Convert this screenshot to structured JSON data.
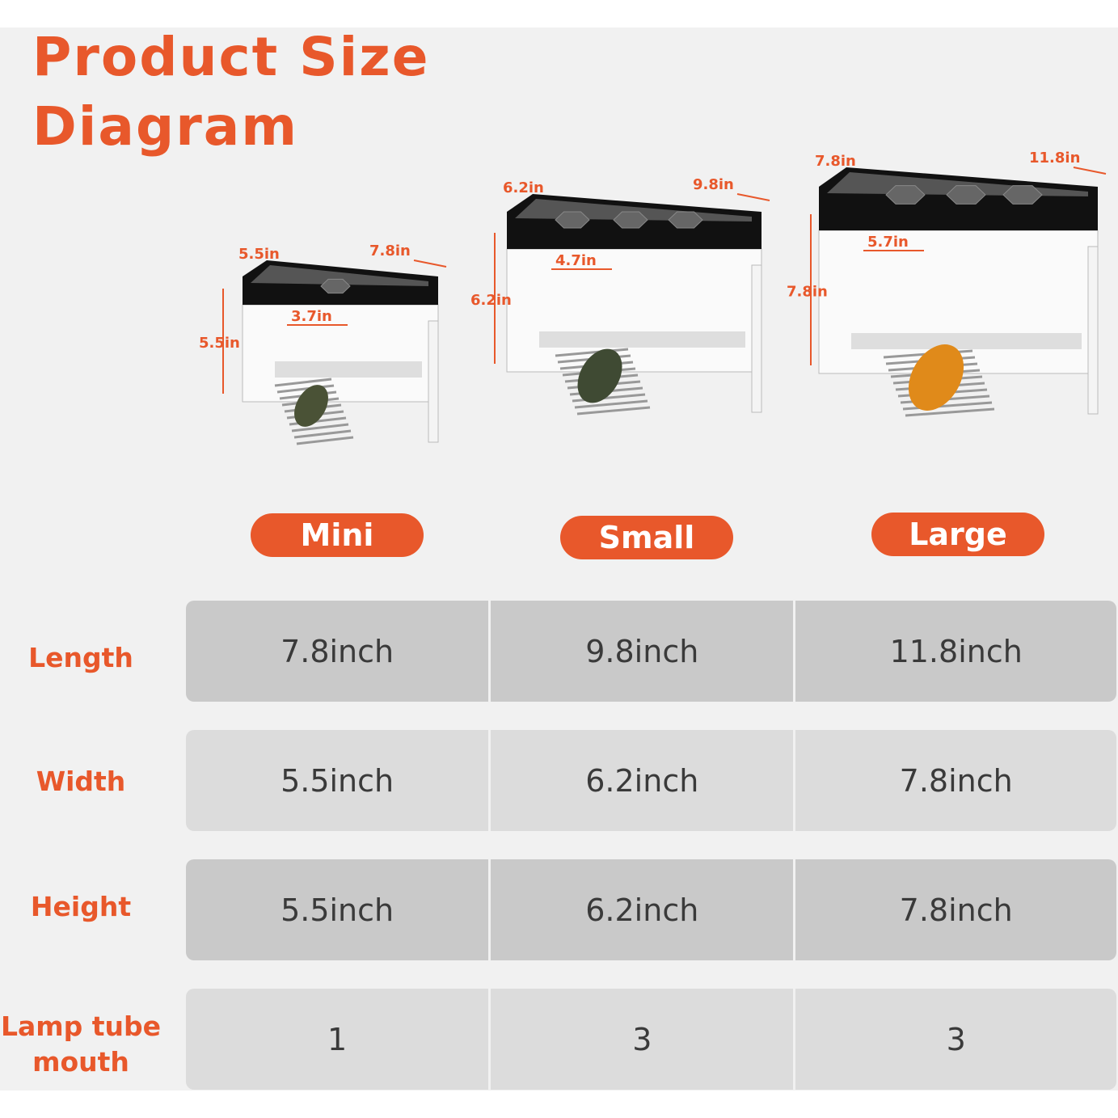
{
  "title": [
    "Product Size",
    "Diagram"
  ],
  "colors": {
    "accent": "#e8582b",
    "row_dark": "#c9c9c9",
    "row_light": "#dcdcdc"
  },
  "products": [
    {
      "name": "Mini",
      "dims": {
        "width": "5.5in",
        "length": "7.8in",
        "height": "5.5in",
        "opening": "3.7in"
      },
      "lamp_holes": 1
    },
    {
      "name": "Small",
      "dims": {
        "width": "6.2in",
        "length": "9.8in",
        "height": "6.2in",
        "opening": "4.7in"
      },
      "lamp_holes": 3
    },
    {
      "name": "Large",
      "dims": {
        "width": "7.8in",
        "length": "11.8in",
        "height": "7.8in",
        "opening": "5.7in"
      },
      "lamp_holes": 3
    }
  ],
  "table": {
    "rows": [
      {
        "label": "Length",
        "values": [
          "7.8inch",
          "9.8inch",
          "11.8inch"
        ]
      },
      {
        "label": "Width",
        "values": [
          "5.5inch",
          "6.2inch",
          "7.8inch"
        ]
      },
      {
        "label": "Height",
        "values": [
          "5.5inch",
          "6.2inch",
          "7.8inch"
        ]
      },
      {
        "label": "Lamp tube mouth",
        "values": [
          "1",
          "3",
          "3"
        ]
      }
    ]
  }
}
